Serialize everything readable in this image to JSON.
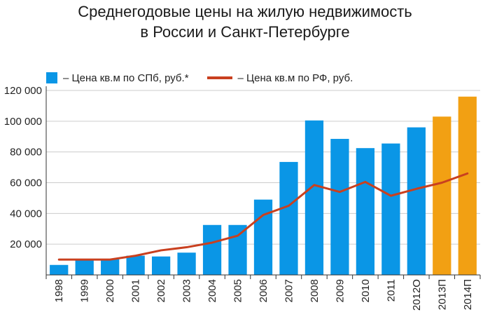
{
  "colors": {
    "bar_actual": "#0a96e6",
    "bar_forecast": "#f2a013",
    "line": "#c9401f",
    "grid": "#cccccc",
    "axis": "#333333"
  },
  "chart_data": {
    "type": "bar",
    "title": [
      "Среднегодовые цены на жилую недвижимость",
      "в России и Санкт-Петербурге"
    ],
    "xlabel": "",
    "ylabel": "",
    "ylim": [
      0,
      120000
    ],
    "yticks": [
      20000,
      40000,
      60000,
      80000,
      100000,
      120000
    ],
    "ytick_labels": [
      "20 000",
      "40 000",
      "60 000",
      "80 000",
      "100 000",
      "120 000"
    ],
    "grid": true,
    "legend_position": "top-left",
    "categories": [
      "1998",
      "1999",
      "2000",
      "2001",
      "2002",
      "2003",
      "2004",
      "2005",
      "2006",
      "2007",
      "2008",
      "2009",
      "2010",
      "2011",
      "2012О",
      "2013П",
      "2014П"
    ],
    "series": [
      {
        "name": "– Цена кв.м по СПб, руб.*",
        "type": "bar",
        "values": [
          6500,
          9800,
          10200,
          12500,
          12000,
          14500,
          32500,
          32500,
          49000,
          73500,
          100500,
          88500,
          82500,
          85500,
          96000,
          103000,
          116000
        ],
        "forecast_categories": [
          "2013П",
          "2014П"
        ]
      },
      {
        "name": "– Цена кв.м по РФ, руб.",
        "type": "line",
        "values": [
          10000,
          10000,
          10000,
          12500,
          16000,
          18000,
          21000,
          25500,
          39000,
          45000,
          58500,
          54000,
          60500,
          51500,
          56000,
          60000,
          66000
        ]
      }
    ]
  }
}
